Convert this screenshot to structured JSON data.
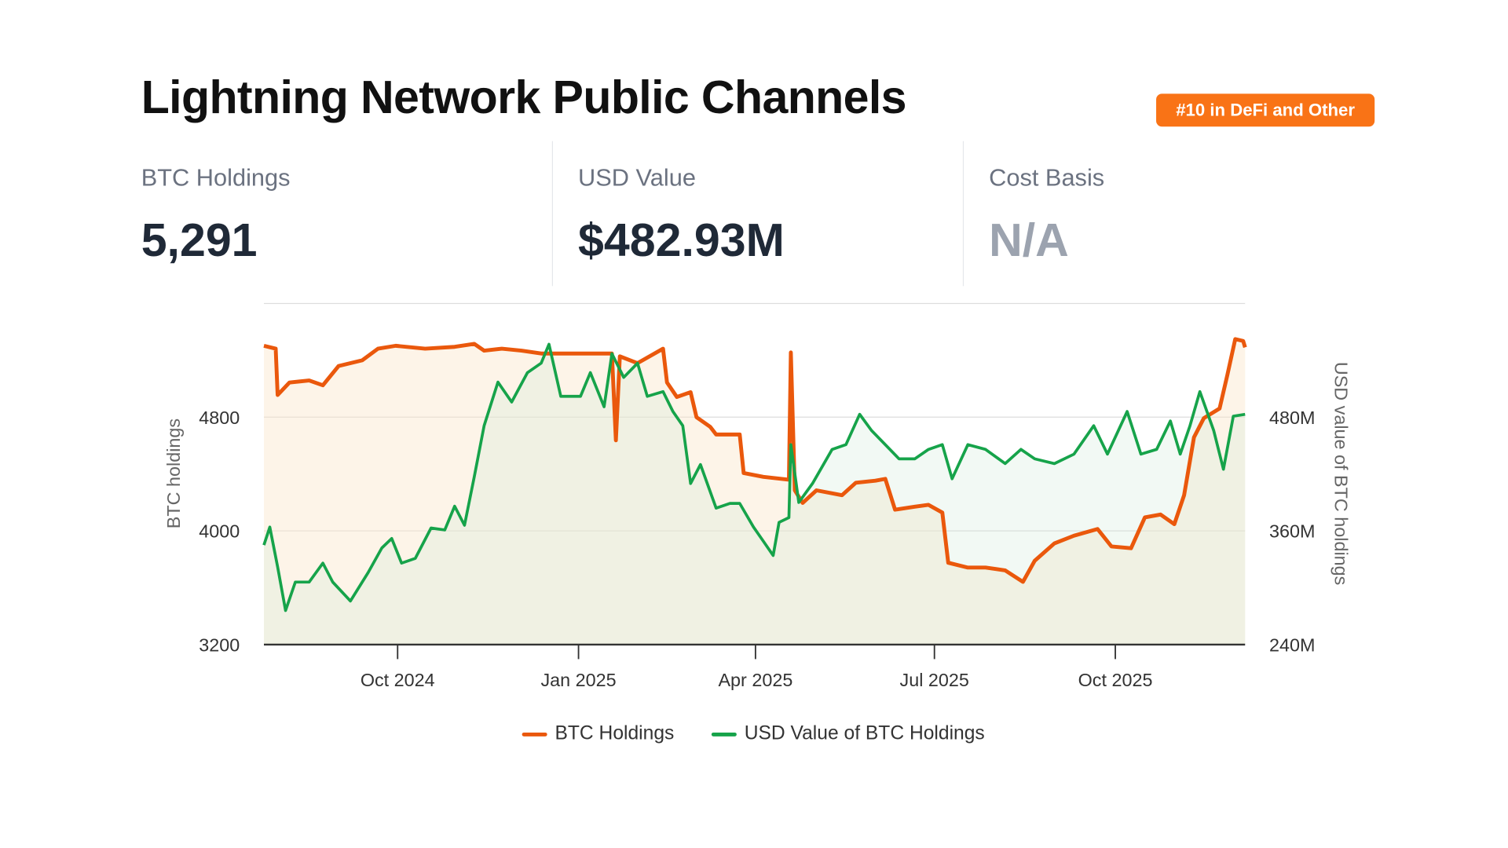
{
  "header": {
    "title": "Lightning Network Public Channels",
    "badge": "#10 in DeFi and Other"
  },
  "stats": [
    {
      "label": "BTC Holdings",
      "value": "5,291"
    },
    {
      "label": "USD Value",
      "value": "$482.93M"
    },
    {
      "label": "Cost Basis",
      "value": "N/A"
    }
  ],
  "colors": {
    "btc": "#ea580c",
    "usd": "#16a34a",
    "badge": "#f97316"
  },
  "chart_data": {
    "type": "line",
    "xlabel": "",
    "ylabel_left": "BTC holdings",
    "ylabel_right": "USD value of BTC holdings",
    "x_range": [
      "2024-07-25",
      "2025-12-06"
    ],
    "x_ticks": [
      {
        "date": "2024-10-01",
        "label": "Oct 2024"
      },
      {
        "date": "2025-01-01",
        "label": "Jan 2025"
      },
      {
        "date": "2025-04-01",
        "label": "Apr 2025"
      },
      {
        "date": "2025-07-01",
        "label": "Jul 2025"
      },
      {
        "date": "2025-10-01",
        "label": "Oct 2025"
      }
    ],
    "ylim_left": [
      3200,
      5600
    ],
    "ylim_right": [
      240,
      600
    ],
    "y_ticks_left": [
      {
        "v": 3200,
        "label": "3200"
      },
      {
        "v": 4000,
        "label": "4000"
      },
      {
        "v": 4800,
        "label": "4800"
      }
    ],
    "y_ticks_right": [
      {
        "v": 240,
        "label": "240M"
      },
      {
        "v": 360,
        "label": "360M"
      },
      {
        "v": 480,
        "label": "480M"
      }
    ],
    "grid": true,
    "legend_position": "bottom",
    "series": [
      {
        "name": "BTC Holdings",
        "axis": "left",
        "unit": "BTC",
        "points": [
          [
            "2024-07-25",
            5302
          ],
          [
            "2024-07-31",
            5282
          ],
          [
            "2024-08-01",
            4956
          ],
          [
            "2024-08-07",
            5044
          ],
          [
            "2024-08-17",
            5058
          ],
          [
            "2024-08-24",
            5024
          ],
          [
            "2024-09-01",
            5160
          ],
          [
            "2024-09-13",
            5200
          ],
          [
            "2024-09-21",
            5282
          ],
          [
            "2024-09-30",
            5302
          ],
          [
            "2024-10-15",
            5282
          ],
          [
            "2024-10-30",
            5295
          ],
          [
            "2024-11-09",
            5316
          ],
          [
            "2024-11-14",
            5268
          ],
          [
            "2024-11-23",
            5282
          ],
          [
            "2024-12-03",
            5268
          ],
          [
            "2024-12-13",
            5248
          ],
          [
            "2025-01-02",
            5248
          ],
          [
            "2025-01-18",
            5248
          ],
          [
            "2025-01-20",
            4637
          ],
          [
            "2025-01-22",
            5228
          ],
          [
            "2025-01-31",
            5180
          ],
          [
            "2025-02-13",
            5282
          ],
          [
            "2025-02-15",
            5044
          ],
          [
            "2025-02-20",
            4942
          ],
          [
            "2025-02-27",
            4976
          ],
          [
            "2025-03-02",
            4800
          ],
          [
            "2025-03-09",
            4732
          ],
          [
            "2025-03-12",
            4678
          ],
          [
            "2025-03-24",
            4678
          ],
          [
            "2025-03-26",
            4407
          ],
          [
            "2025-04-05",
            4380
          ],
          [
            "2025-04-18",
            4360
          ],
          [
            "2025-04-19",
            5255
          ],
          [
            "2025-04-21",
            4285
          ],
          [
            "2025-04-25",
            4197
          ],
          [
            "2025-05-02",
            4285
          ],
          [
            "2025-05-15",
            4251
          ],
          [
            "2025-05-22",
            4339
          ],
          [
            "2025-06-01",
            4353
          ],
          [
            "2025-06-06",
            4366
          ],
          [
            "2025-06-11",
            4149
          ],
          [
            "2025-06-21",
            4170
          ],
          [
            "2025-06-28",
            4183
          ],
          [
            "2025-07-05",
            4129
          ],
          [
            "2025-07-08",
            3776
          ],
          [
            "2025-07-18",
            3742
          ],
          [
            "2025-07-27",
            3742
          ],
          [
            "2025-08-06",
            3722
          ],
          [
            "2025-08-15",
            3641
          ],
          [
            "2025-08-21",
            3790
          ],
          [
            "2025-08-31",
            3912
          ],
          [
            "2025-09-10",
            3966
          ],
          [
            "2025-09-22",
            4013
          ],
          [
            "2025-09-29",
            3891
          ],
          [
            "2025-10-09",
            3878
          ],
          [
            "2025-10-16",
            4095
          ],
          [
            "2025-10-24",
            4115
          ],
          [
            "2025-10-31",
            4047
          ],
          [
            "2025-11-05",
            4251
          ],
          [
            "2025-11-10",
            4658
          ],
          [
            "2025-11-15",
            4793
          ],
          [
            "2025-11-23",
            4861
          ],
          [
            "2025-11-27",
            5098
          ],
          [
            "2025-12-01",
            5349
          ],
          [
            "2025-12-05",
            5336
          ],
          [
            "2025-12-06",
            5291
          ]
        ]
      },
      {
        "name": "USD Value of BTC Holdings",
        "axis": "right",
        "unit": "USD M",
        "points": [
          [
            "2024-07-25",
            345
          ],
          [
            "2024-07-28",
            364
          ],
          [
            "2024-08-01",
            322
          ],
          [
            "2024-08-05",
            276
          ],
          [
            "2024-08-10",
            306
          ],
          [
            "2024-08-17",
            306
          ],
          [
            "2024-08-24",
            326
          ],
          [
            "2024-08-29",
            306
          ],
          [
            "2024-09-07",
            286
          ],
          [
            "2024-09-16",
            316
          ],
          [
            "2024-09-23",
            342
          ],
          [
            "2024-09-28",
            352
          ],
          [
            "2024-10-03",
            326
          ],
          [
            "2024-10-10",
            331
          ],
          [
            "2024-10-18",
            363
          ],
          [
            "2024-10-25",
            361
          ],
          [
            "2024-10-30",
            386
          ],
          [
            "2024-11-04",
            366
          ],
          [
            "2024-11-09",
            417
          ],
          [
            "2024-11-14",
            471
          ],
          [
            "2024-11-21",
            517
          ],
          [
            "2024-11-28",
            496
          ],
          [
            "2024-12-06",
            527
          ],
          [
            "2024-12-13",
            537
          ],
          [
            "2024-12-17",
            557
          ],
          [
            "2024-12-23",
            502
          ],
          [
            "2025-01-02",
            502
          ],
          [
            "2025-01-07",
            527
          ],
          [
            "2025-01-14",
            491
          ],
          [
            "2025-01-18",
            547
          ],
          [
            "2025-01-24",
            522
          ],
          [
            "2025-01-31",
            537
          ],
          [
            "2025-02-05",
            502
          ],
          [
            "2025-02-13",
            507
          ],
          [
            "2025-02-18",
            486
          ],
          [
            "2025-02-23",
            471
          ],
          [
            "2025-02-27",
            410
          ],
          [
            "2025-03-04",
            430
          ],
          [
            "2025-03-12",
            384
          ],
          [
            "2025-03-19",
            389
          ],
          [
            "2025-03-24",
            389
          ],
          [
            "2025-03-31",
            364
          ],
          [
            "2025-04-05",
            349
          ],
          [
            "2025-04-10",
            334
          ],
          [
            "2025-04-13",
            369
          ],
          [
            "2025-04-18",
            374
          ],
          [
            "2025-04-19",
            451
          ],
          [
            "2025-04-23",
            390
          ],
          [
            "2025-04-30",
            410
          ],
          [
            "2025-05-10",
            446
          ],
          [
            "2025-05-17",
            451
          ],
          [
            "2025-05-24",
            483
          ],
          [
            "2025-05-30",
            466
          ],
          [
            "2025-06-06",
            451
          ],
          [
            "2025-06-13",
            436
          ],
          [
            "2025-06-21",
            436
          ],
          [
            "2025-06-28",
            446
          ],
          [
            "2025-07-05",
            451
          ],
          [
            "2025-07-10",
            415
          ],
          [
            "2025-07-18",
            451
          ],
          [
            "2025-07-27",
            446
          ],
          [
            "2025-08-06",
            431
          ],
          [
            "2025-08-14",
            446
          ],
          [
            "2025-08-21",
            436
          ],
          [
            "2025-08-31",
            431
          ],
          [
            "2025-09-10",
            441
          ],
          [
            "2025-09-20",
            471
          ],
          [
            "2025-09-27",
            441
          ],
          [
            "2025-10-07",
            486
          ],
          [
            "2025-10-14",
            441
          ],
          [
            "2025-10-22",
            446
          ],
          [
            "2025-10-29",
            476
          ],
          [
            "2025-11-03",
            441
          ],
          [
            "2025-11-08",
            471
          ],
          [
            "2025-11-13",
            507
          ],
          [
            "2025-11-20",
            466
          ],
          [
            "2025-11-25",
            425
          ],
          [
            "2025-11-30",
            481
          ],
          [
            "2025-12-06",
            483
          ]
        ]
      }
    ]
  }
}
